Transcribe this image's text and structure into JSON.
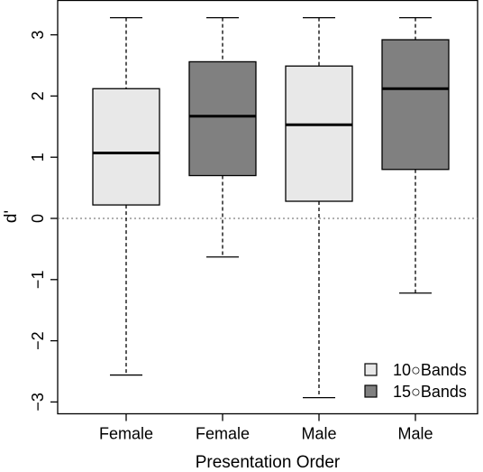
{
  "chart_data": {
    "type": "boxplot",
    "title": "",
    "xlabel": "Presentation Order",
    "ylabel": "d'",
    "ylim": [
      -3.0,
      3.4
    ],
    "yticks": [
      -3,
      -2,
      -1,
      0,
      1,
      2,
      3
    ],
    "ytick_labels": [
      "−3",
      "−2",
      "−1",
      "0",
      "1",
      "2",
      "3"
    ],
    "reference_line": {
      "y": 0,
      "style": "dotted",
      "color": "#808080"
    },
    "grid": false,
    "legend": {
      "placement": "bottom-right",
      "entries": [
        {
          "label": "10○Bands",
          "color": "#e8e8e8"
        },
        {
          "label": "15○Bands",
          "color": "#808080"
        }
      ]
    },
    "boxes": [
      {
        "category": "Female",
        "fill": "#e8e8e8",
        "whisker_low": -2.56,
        "q1": 0.22,
        "median": 1.07,
        "q3": 2.12,
        "whisker_high": 3.28
      },
      {
        "category": "Female",
        "fill": "#808080",
        "whisker_low": -0.63,
        "q1": 0.7,
        "median": 1.67,
        "q3": 2.56,
        "whisker_high": 3.28
      },
      {
        "category": "Male",
        "fill": "#e8e8e8",
        "whisker_low": -2.93,
        "q1": 0.28,
        "median": 1.53,
        "q3": 2.49,
        "whisker_high": 3.28
      },
      {
        "category": "Male",
        "fill": "#808080",
        "whisker_low": -1.22,
        "q1": 0.8,
        "median": 2.12,
        "q3": 2.92,
        "whisker_high": 3.28
      }
    ]
  }
}
